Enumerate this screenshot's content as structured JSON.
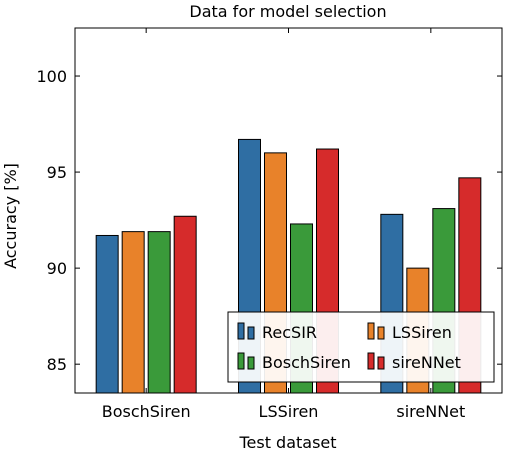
{
  "chart_data": {
    "type": "bar",
    "title": "Data for model selection",
    "xlabel": "Test dataset",
    "ylabel": "Accuracy [%]",
    "categories": [
      "BoschSiren",
      "LSSiren",
      "sireNNet"
    ],
    "series": [
      {
        "name": "RecSIR",
        "color": "#2f6ea3",
        "values": [
          91.7,
          96.7,
          92.8
        ]
      },
      {
        "name": "LSSiren",
        "color": "#e8822a",
        "values": [
          91.9,
          96.0,
          90.0
        ]
      },
      {
        "name": "BoschSiren",
        "color": "#3a9a3a",
        "values": [
          91.9,
          92.3,
          93.1
        ]
      },
      {
        "name": "sireNNet",
        "color": "#d62b2b",
        "values": [
          92.7,
          96.2,
          94.7
        ]
      }
    ],
    "ylim": [
      83.5,
      102.5
    ],
    "yticks": [
      85,
      90,
      95,
      100
    ],
    "grid": false,
    "legend_position": "bottom-right"
  }
}
